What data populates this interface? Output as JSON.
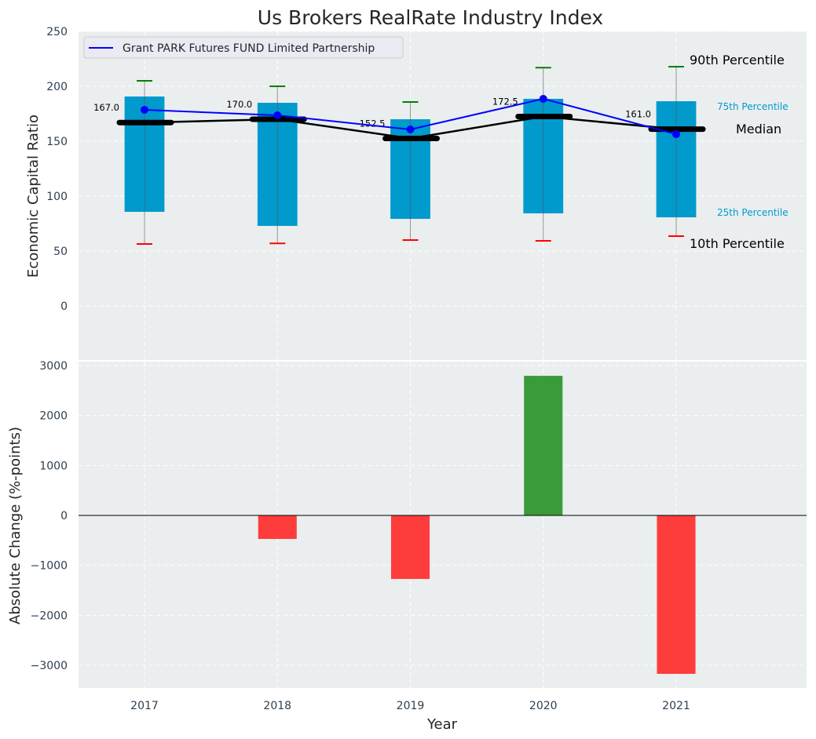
{
  "chart_data": [
    {
      "type": "box-percentile",
      "title": "Us Brokers RealRate Industry Index",
      "xlabel": "",
      "ylabel": "Economic Capital Ratio",
      "ylim": [
        -50,
        250
      ],
      "yticks": [
        0,
        50,
        100,
        150,
        200,
        250
      ],
      "grid": true,
      "legend": {
        "placement": "top-left",
        "entries": [
          "Grant PARK Futures FUND Limited Partnership"
        ]
      },
      "categories": [
        "2017",
        "2018",
        "2019",
        "2020",
        "2021"
      ],
      "p10": [
        56.4,
        57.0,
        60.0,
        59.3,
        63.6
      ],
      "p25": [
        85.7,
        72.9,
        79.3,
        84.3,
        80.7
      ],
      "median": [
        167.0,
        170.0,
        152.5,
        172.5,
        161.0
      ],
      "median_labels": [
        "167.0",
        "170.0",
        "152.5",
        "172.5",
        "161.0"
      ],
      "p75": [
        190.7,
        185.0,
        170.0,
        188.6,
        186.4
      ],
      "p90": [
        205.0,
        200.0,
        185.7,
        217.0,
        217.9
      ],
      "series": [
        {
          "name": "Grant PARK Futures FUND Limited Partnership",
          "values": [
            178.6,
            173.6,
            160.7,
            188.6,
            156.4
          ],
          "color": "#0000ff"
        }
      ],
      "annotations": {
        "p90": "90th Percentile",
        "p75": "75th Percentile",
        "median": "Median",
        "p25": "25th Percentile",
        "p10": "10th Percentile"
      },
      "colors": {
        "box": "#009ACD",
        "p90": "#008000",
        "p10": "#ff0000",
        "median": "#000000",
        "annot_box": "#009ACD"
      }
    },
    {
      "type": "bar",
      "xlabel": "Year",
      "ylabel": "Absolute Change (%-points)",
      "ylim": [
        -3450,
        3100
      ],
      "yticks": [
        -3000,
        -2000,
        -1000,
        0,
        1000,
        2000,
        3000
      ],
      "ytick_labels": [
        "−3000",
        "−2000",
        "−1000",
        "0",
        "1000",
        "2000",
        "3000"
      ],
      "grid": true,
      "categories": [
        "2017",
        "2018",
        "2019",
        "2020",
        "2021"
      ],
      "values": [
        0,
        -471,
        -1272,
        2795,
        -3172
      ],
      "colors": {
        "positive": "#3a9b3a",
        "negative": "#ff3c3c"
      }
    }
  ]
}
